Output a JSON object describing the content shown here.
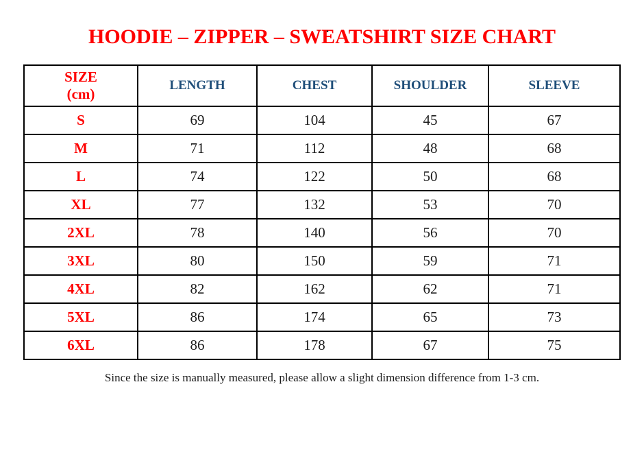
{
  "page": {
    "stray_mark": ".",
    "title": "HOODIE – ZIPPER – SWEATSHIRT SIZE CHART",
    "footer_note": "Since the size is manually measured, please allow a slight dimension difference from 1-3 cm."
  },
  "colors": {
    "title_red": "#FE0000",
    "header_blue": "#1F4E79",
    "size_label_red": "#FE0000",
    "value_black": "#1B1B1B",
    "border_black": "#000000",
    "background": "#FFFFFF"
  },
  "chart_data": {
    "type": "table",
    "title": "HOODIE – ZIPPER – SWEATSHIRT SIZE CHART",
    "unit": "cm",
    "columns": [
      {
        "label": "SIZE",
        "sublabel": "(cm)"
      },
      {
        "label": "LENGTH"
      },
      {
        "label": "CHEST"
      },
      {
        "label": "SHOULDER"
      },
      {
        "label": "SLEEVE"
      }
    ],
    "rows": [
      {
        "size": "S",
        "length": 69,
        "chest": 104,
        "shoulder": 45,
        "sleeve": 67
      },
      {
        "size": "M",
        "length": 71,
        "chest": 112,
        "shoulder": 48,
        "sleeve": 68
      },
      {
        "size": "L",
        "length": 74,
        "chest": 122,
        "shoulder": 50,
        "sleeve": 68
      },
      {
        "size": "XL",
        "length": 77,
        "chest": 132,
        "shoulder": 53,
        "sleeve": 70
      },
      {
        "size": "2XL",
        "length": 78,
        "chest": 140,
        "shoulder": 56,
        "sleeve": 70
      },
      {
        "size": "3XL",
        "length": 80,
        "chest": 150,
        "shoulder": 59,
        "sleeve": 71
      },
      {
        "size": "4XL",
        "length": 82,
        "chest": 162,
        "shoulder": 62,
        "sleeve": 71
      },
      {
        "size": "5XL",
        "length": 86,
        "chest": 174,
        "shoulder": 65,
        "sleeve": 73
      },
      {
        "size": "6XL",
        "length": 86,
        "chest": 178,
        "shoulder": 67,
        "sleeve": 75
      }
    ],
    "footnote": "Since the size is manually measured, please allow a slight dimension difference from 1-3 cm."
  }
}
